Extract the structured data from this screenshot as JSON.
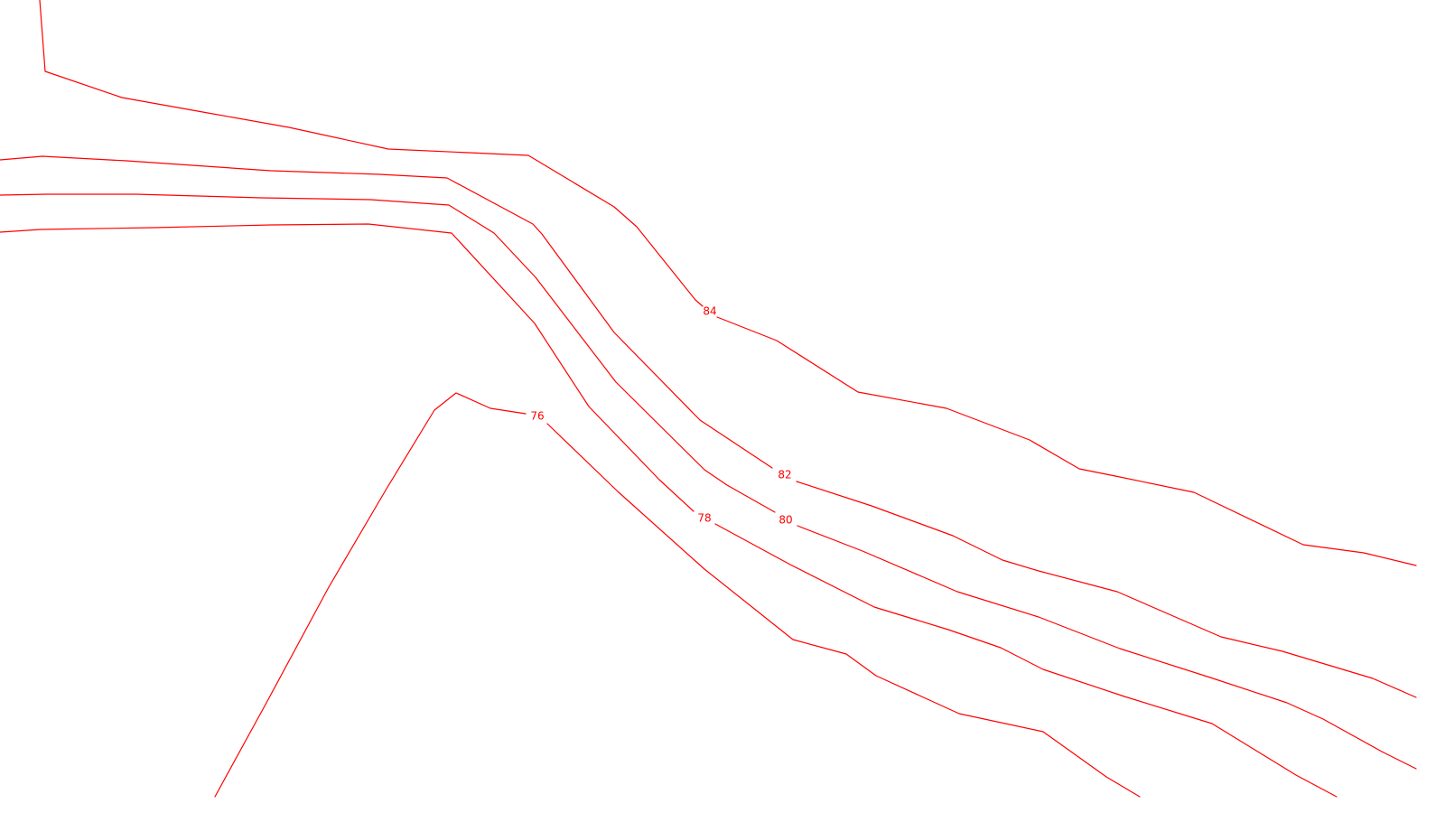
{
  "map": {
    "line_color": "#ff0000",
    "background_color": "#ffffff",
    "contours": [
      {
        "label": "84"
      },
      {
        "label": "82"
      },
      {
        "label": "80"
      },
      {
        "label": "78"
      },
      {
        "label": "76"
      }
    ]
  }
}
